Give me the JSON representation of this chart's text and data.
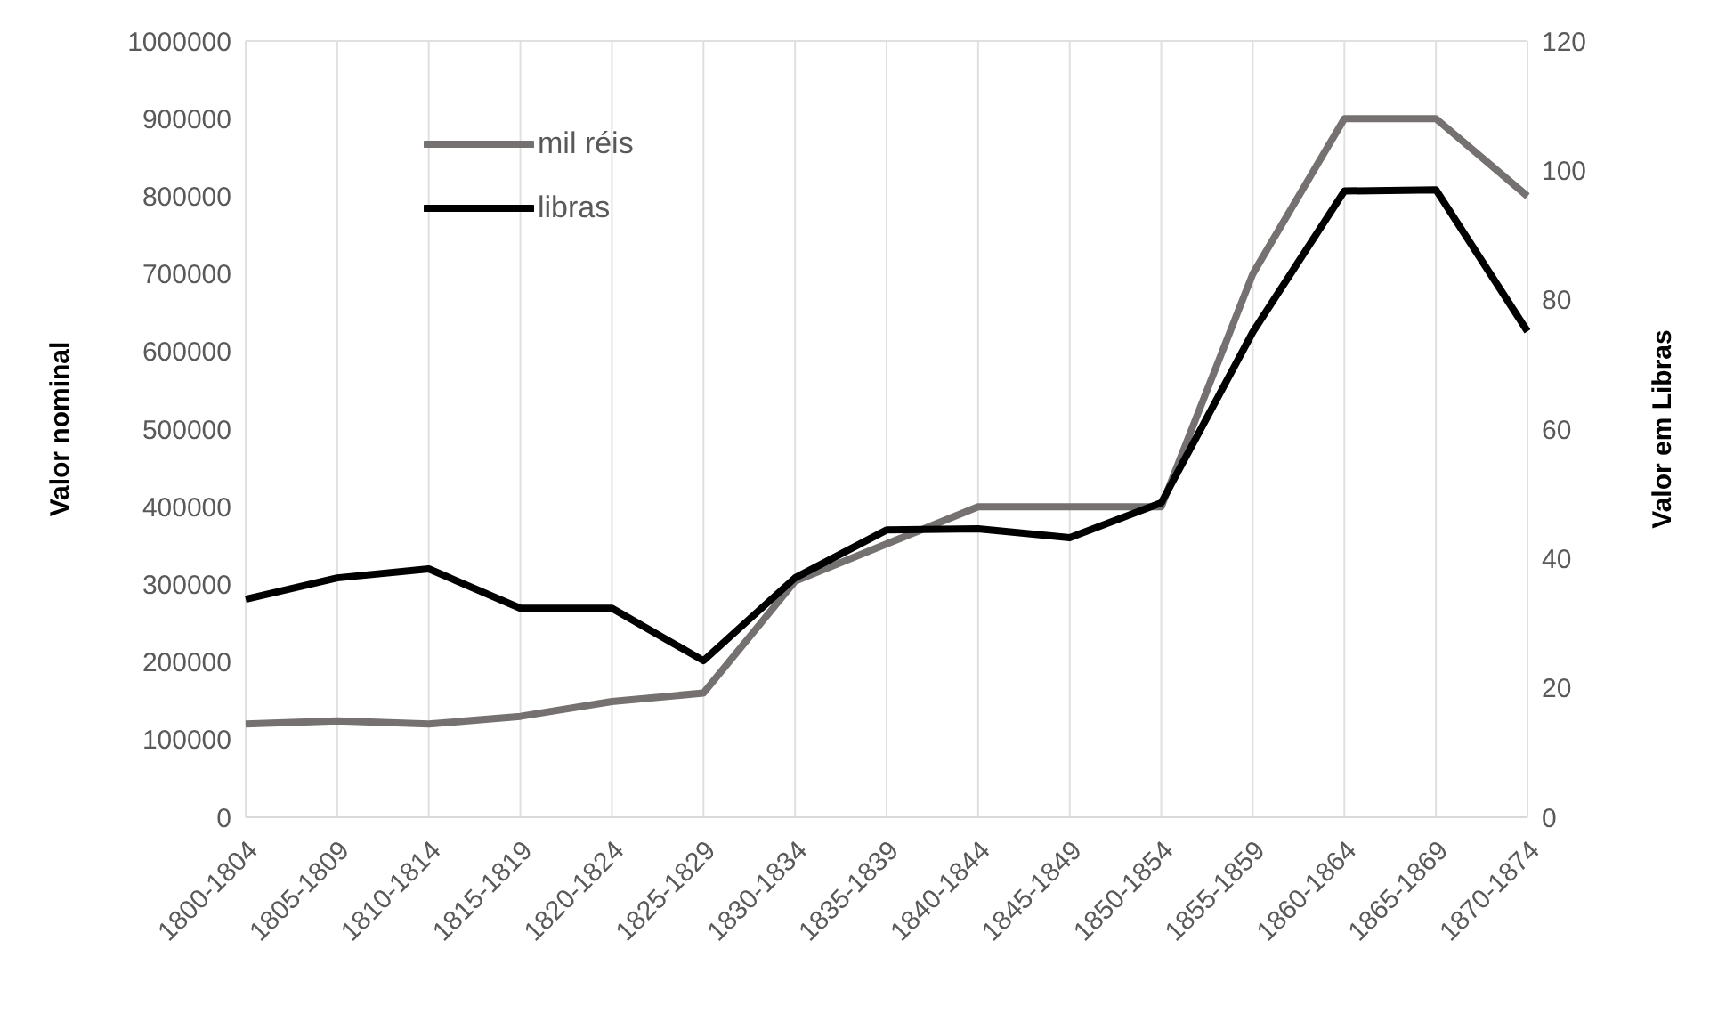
{
  "chart_data": {
    "type": "line",
    "ylabel": "Valor nominal",
    "y2label": "Valor em Libras",
    "categories": [
      "1800-1804",
      "1805-1809",
      "1810-1814",
      "1815-1819",
      "1820-1824",
      "1825-1829",
      "1830-1834",
      "1835-1839",
      "1840-1844",
      "1845-1849",
      "1850-1854",
      "1855-1859",
      "1860-1864",
      "1865-1869",
      "1870-1874"
    ],
    "series": [
      {
        "name": "mil réis",
        "color": "#767171",
        "values": [
          120000,
          124000,
          120000,
          130000,
          149000,
          160000,
          304000,
          352000,
          400000,
          400000,
          400000,
          700000,
          900000,
          900000,
          800000
        ]
      },
      {
        "name": "libras",
        "color": "#000000",
        "axis": "y2",
        "values": [
          33.7,
          37,
          38.4,
          32.3,
          32.3,
          24.2,
          37,
          44.4,
          44.6,
          43.2,
          48.6,
          75,
          96.8,
          97,
          75.1
        ]
      }
    ],
    "ylim": [
      0,
      1000000
    ],
    "yticks": [
      0,
      100000,
      200000,
      300000,
      400000,
      500000,
      600000,
      700000,
      800000,
      900000,
      1000000
    ],
    "y2lim": [
      0,
      120
    ],
    "y2ticks": [
      0,
      20,
      40,
      60,
      80,
      100,
      120
    ],
    "grid": true,
    "legend": "top left",
    "marker": "none",
    "line_style": "solid"
  }
}
